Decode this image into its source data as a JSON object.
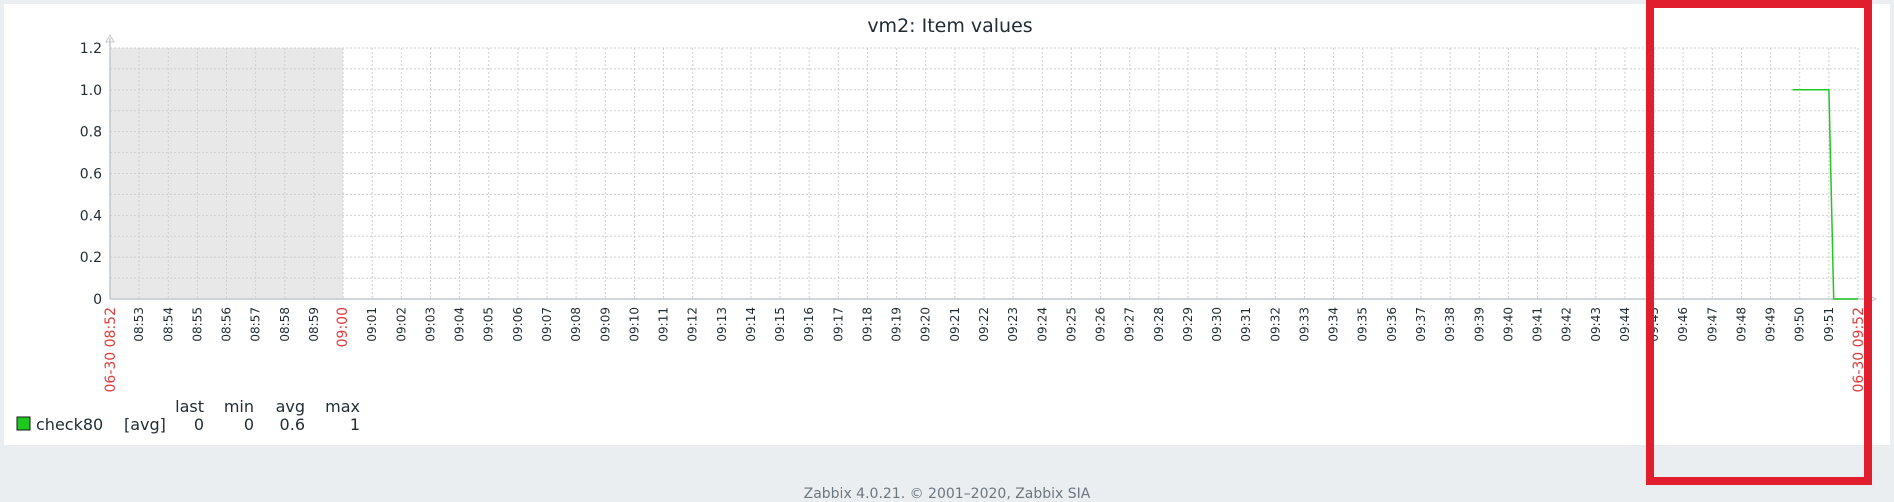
{
  "chart_data": {
    "type": "line",
    "title": "vm2: Item values",
    "y_ticks": [
      "0",
      "0.2",
      "0.4",
      "0.6",
      "0.8",
      "1.0",
      "1.2"
    ],
    "ylim": [
      0,
      1.2
    ],
    "x_tick_labels": [
      "08:53",
      "08:54",
      "08:55",
      "08:56",
      "08:57",
      "08:58",
      "08:59",
      "09:00",
      "09:01",
      "09:02",
      "09:03",
      "09:04",
      "09:05",
      "09:06",
      "09:07",
      "09:08",
      "09:09",
      "09:10",
      "09:11",
      "09:12",
      "09:13",
      "09:14",
      "09:15",
      "09:16",
      "09:17",
      "09:18",
      "09:19",
      "09:20",
      "09:21",
      "09:22",
      "09:23",
      "09:24",
      "09:25",
      "09:26",
      "09:27",
      "09:28",
      "09:29",
      "09:30",
      "09:31",
      "09:32",
      "09:33",
      "09:34",
      "09:35",
      "09:36",
      "09:37",
      "09:38",
      "09:39",
      "09:40",
      "09:41",
      "09:42",
      "09:43",
      "09:44",
      "09:45",
      "09:46",
      "09:47",
      "09:48",
      "09:49",
      "09:50",
      "09:51"
    ],
    "x_start_label": "06-30 08:52",
    "x_end_label": "06-30 09:52",
    "grid": true,
    "nodata_region": [
      "08:52",
      "09:00"
    ],
    "series": [
      {
        "name": "check80",
        "color": "#1ec81e",
        "points": [
          [
            "09:49:45",
            1
          ],
          [
            "09:51:00",
            1
          ],
          [
            "09:51:10",
            0
          ],
          [
            "09:52:00",
            0
          ]
        ]
      }
    ],
    "legend": {
      "headers": [
        "last",
        "min",
        "avg",
        "max"
      ],
      "items": [
        {
          "name": "check80",
          "func": "[avg]",
          "last": "0",
          "min": "0",
          "avg": "0.6",
          "max": "1",
          "color": "#1ec81e"
        }
      ]
    }
  },
  "footer": {
    "text": "Zabbix 4.0.21. © 2001–2020, Zabbix SIA"
  },
  "highlight": {
    "color": "#e11e2d"
  }
}
